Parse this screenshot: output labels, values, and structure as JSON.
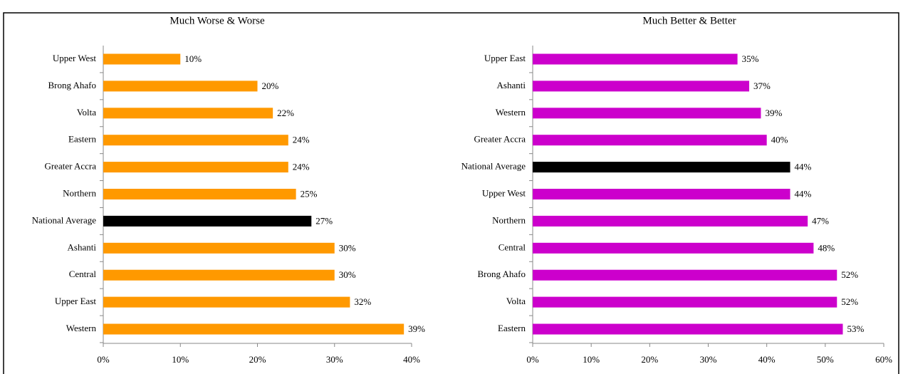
{
  "chart_data": [
    {
      "type": "bar",
      "orientation": "horizontal",
      "title": "Much Worse & Worse",
      "categories": [
        "Upper West",
        "Brong Ahafo",
        "Volta",
        "Eastern",
        "Greater Accra",
        "Northern",
        "National Average",
        "Ashanti",
        "Central",
        "Upper East",
        "Western"
      ],
      "values": [
        10,
        20,
        22,
        24,
        24,
        25,
        27,
        30,
        30,
        32,
        39
      ],
      "value_labels": [
        "10%",
        "20%",
        "22%",
        "24%",
        "24%",
        "25%",
        "27%",
        "30%",
        "30%",
        "32%",
        "39%"
      ],
      "colors": [
        "#ff9900",
        "#ff9900",
        "#ff9900",
        "#ff9900",
        "#ff9900",
        "#ff9900",
        "#000000",
        "#ff9900",
        "#ff9900",
        "#ff9900",
        "#ff9900"
      ],
      "xlim": [
        0,
        40
      ],
      "xticks": [
        {
          "value": 0,
          "label": "0%"
        },
        {
          "value": 10,
          "label": "10%"
        },
        {
          "value": 20,
          "label": "20%"
        },
        {
          "value": 30,
          "label": "30%"
        },
        {
          "value": 40,
          "label": "40%"
        }
      ]
    },
    {
      "type": "bar",
      "orientation": "horizontal",
      "title": "Much Better & Better",
      "categories": [
        "Upper East",
        "Ashanti",
        "Western",
        "Greater Accra",
        "National Average",
        "Upper West",
        "Northern",
        "Central",
        "Brong Ahafo",
        "Volta",
        "Eastern"
      ],
      "values": [
        35,
        37,
        39,
        40,
        44,
        44,
        47,
        48,
        52,
        52,
        53
      ],
      "value_labels": [
        "35%",
        "37%",
        "39%",
        "40%",
        "44%",
        "44%",
        "47%",
        "48%",
        "52%",
        "52%",
        "53%"
      ],
      "colors": [
        "#cc00cc",
        "#cc00cc",
        "#cc00cc",
        "#cc00cc",
        "#000000",
        "#cc00cc",
        "#cc00cc",
        "#cc00cc",
        "#cc00cc",
        "#cc00cc",
        "#cc00cc"
      ],
      "xlim": [
        0,
        60
      ],
      "xticks": [
        {
          "value": 0,
          "label": "0%"
        },
        {
          "value": 10,
          "label": "10%"
        },
        {
          "value": 20,
          "label": "20%"
        },
        {
          "value": 30,
          "label": "30%"
        },
        {
          "value": 40,
          "label": "40%"
        },
        {
          "value": 50,
          "label": "50%"
        },
        {
          "value": 60,
          "label": "60%"
        }
      ]
    }
  ]
}
